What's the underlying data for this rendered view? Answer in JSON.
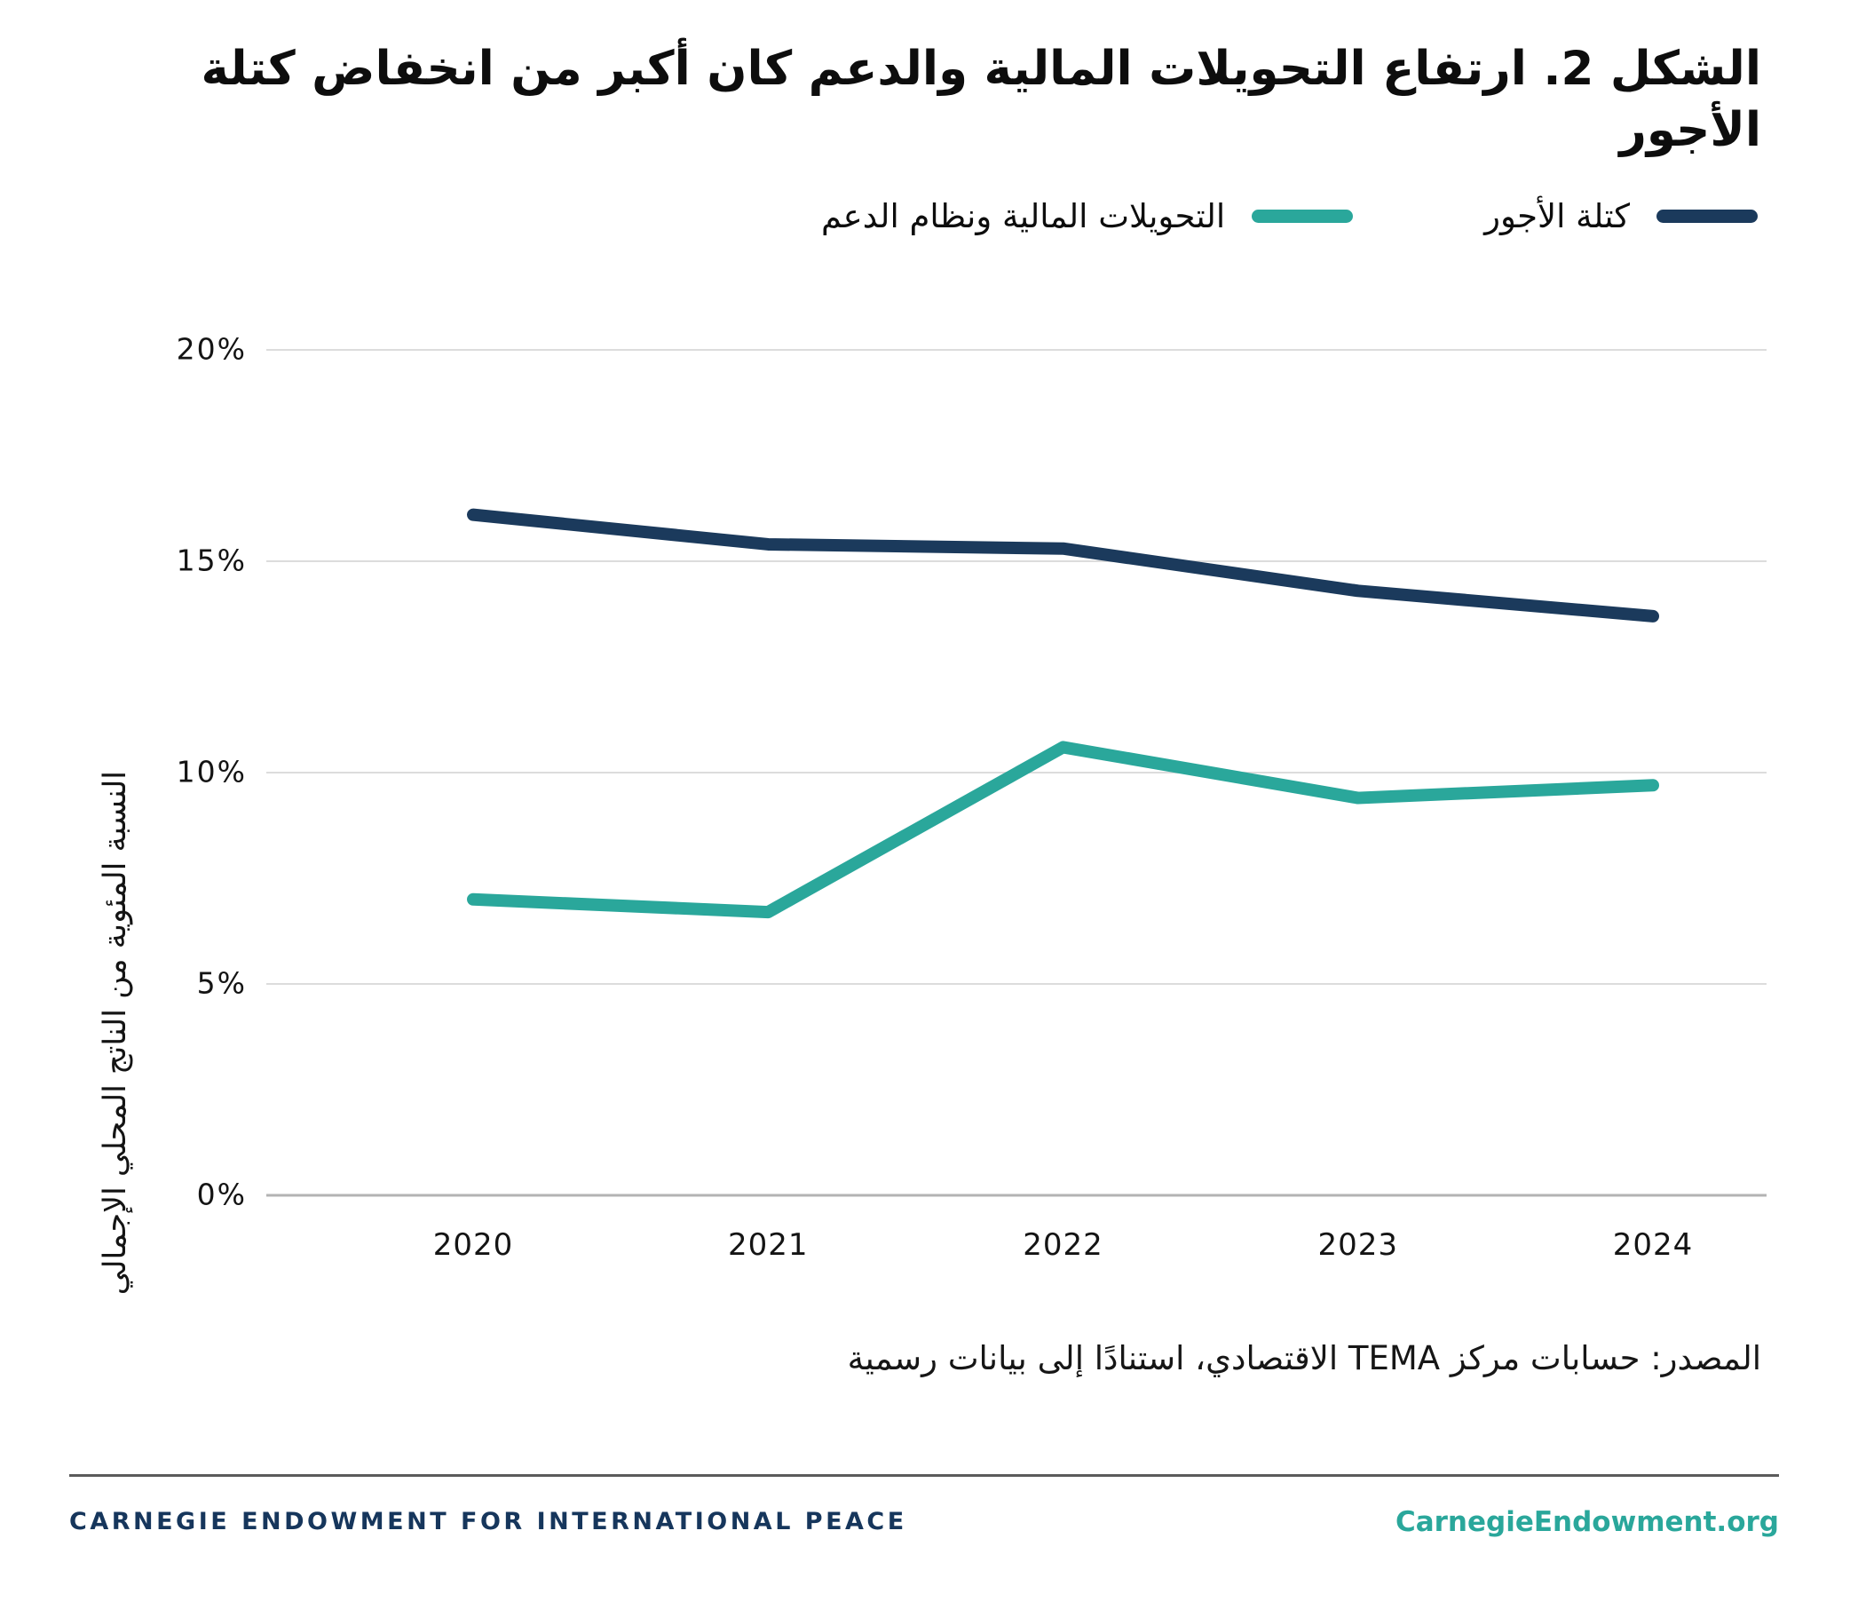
{
  "title": "الشكل 2. ارتفاع التحويلات المالية والدعم كان أكبر من انخفاض كتلة الأجور",
  "legend": [
    {
      "label": "كتلة الأجور",
      "color": "#1b3a5c"
    },
    {
      "label": "التحويلات المالية ونظام الدعم",
      "color": "#2aa79b"
    }
  ],
  "chart_data": {
    "type": "line",
    "categories": [
      "2020",
      "2021",
      "2022",
      "2023",
      "2024"
    ],
    "series": [
      {
        "name": "كتلة الأجور",
        "color": "#1b3a5c",
        "values": [
          16.1,
          15.4,
          15.3,
          14.3,
          13.7
        ]
      },
      {
        "name": "التحويلات المالية ونظام الدعم",
        "color": "#2aa79b",
        "values": [
          7.0,
          6.7,
          10.6,
          9.4,
          9.7
        ]
      }
    ],
    "ylabel": "النسبة المئوية من الناتج المحلي الإجمالي",
    "xlabel": "",
    "ylim": [
      0,
      20
    ],
    "yticks": [
      0,
      5,
      10,
      15,
      20
    ],
    "tick_suffix": "%",
    "grid": true,
    "legend_position": "top-right",
    "grid_color": "#dcdcdc",
    "axis_color": "#b3b3b3"
  },
  "source": "المصدر: حسابات مركز TEMA الاقتصادي، استنادًا إلى بيانات رسمية",
  "footer": {
    "left": "CARNEGIE ENDOWMENT FOR INTERNATIONAL PEACE",
    "right": "CarnegieEndowment.org"
  }
}
